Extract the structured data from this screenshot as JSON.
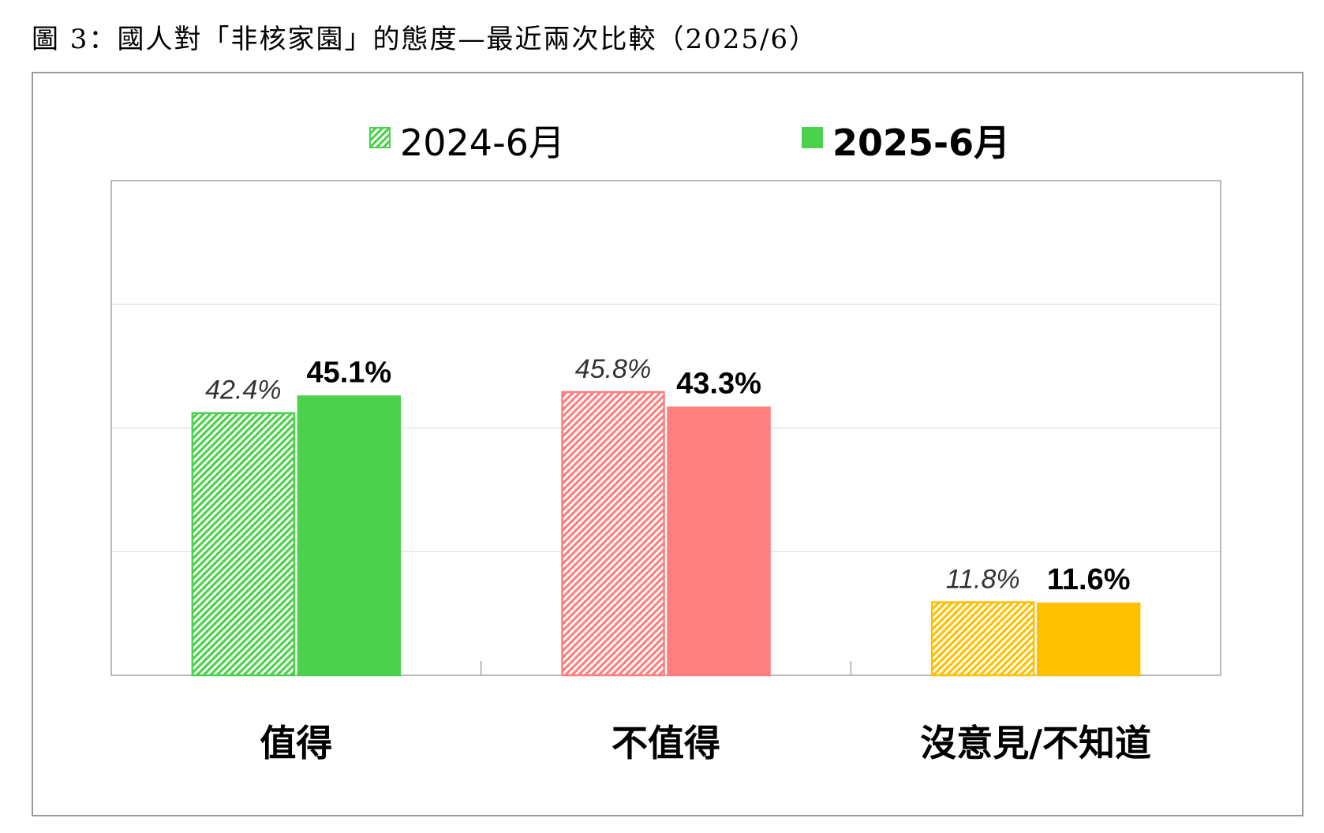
{
  "figure_title": "圖 3：國人對「非核家園」的態度—最近兩次比較（2025/6）",
  "colors": {
    "worth": "#4cd14c",
    "not_worth": "#ff7f7f",
    "unknown": "#ffc000",
    "frame": "#999999",
    "grid": "#d9d9d9",
    "axis": "#a6a6a6"
  },
  "chart_data": {
    "type": "bar",
    "title": "",
    "xlabel": "",
    "ylabel": "",
    "ylim": [
      0,
      80
    ],
    "grid": true,
    "legend": "top",
    "categories": [
      "值得",
      "不值得",
      "沒意見/不知道"
    ],
    "series": [
      {
        "name": "2024-6月",
        "pattern": "hatched",
        "values": [
          42.4,
          45.8,
          11.8
        ],
        "labels": [
          "42.4%",
          "45.8%",
          "11.8%"
        ]
      },
      {
        "name": "2025-6月",
        "pattern": "solid",
        "values": [
          45.1,
          43.3,
          11.6
        ],
        "labels": [
          "45.1%",
          "43.3%",
          "11.6%"
        ]
      }
    ]
  }
}
